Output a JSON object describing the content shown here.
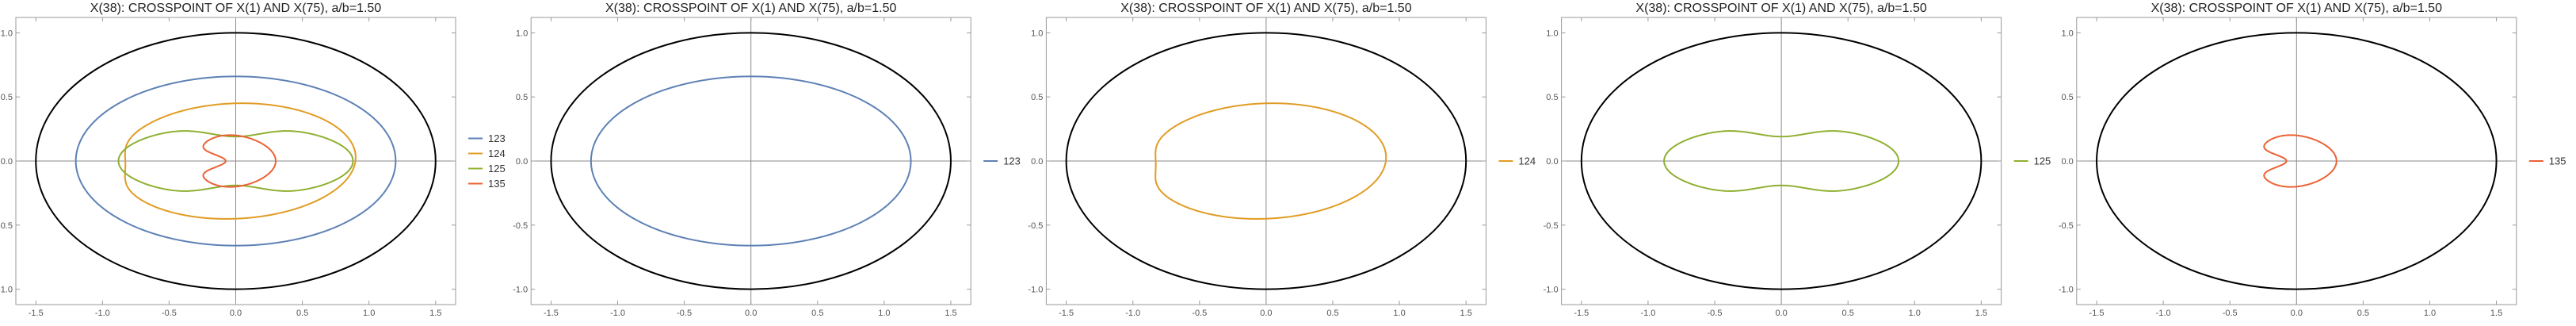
{
  "chart_data": [
    {
      "type": "line",
      "title": "X(38): CROSSPOINT OF X(1) AND X(75), a/b=1.50",
      "xlim": [
        -1.65,
        1.65
      ],
      "ylim": [
        -1.12,
        1.12
      ],
      "x_ticks": [
        "-1.5",
        "-1.0",
        "-0.5",
        "0.0",
        "0.5",
        "1.0",
        "1.5"
      ],
      "y_ticks": [
        "1.0",
        "0.5",
        "0.0",
        "-0.5",
        "-1.0"
      ],
      "grid": false,
      "legend_position": "right",
      "boundary": {
        "color": "#000000",
        "a": 1.5,
        "b": 1.0
      },
      "series": [
        {
          "name": "123",
          "color": "#5e81b5",
          "shape": "ellipse",
          "a": 1.2,
          "b": 0.66
        },
        {
          "name": "124",
          "color": "#e19c24",
          "shape": "kidney-skewed",
          "a": 0.9,
          "b": 0.45
        },
        {
          "name": "125",
          "color": "#8fb032",
          "shape": "peanut",
          "a": 0.88,
          "b": 0.28
        },
        {
          "name": "135",
          "color": "#eb6235",
          "shape": "kidney",
          "a": 0.3,
          "b": 0.2
        }
      ]
    },
    {
      "type": "line",
      "title": "X(38): CROSSPOINT OF X(1) AND X(75), a/b=1.50",
      "xlim": [
        -1.65,
        1.65
      ],
      "ylim": [
        -1.12,
        1.12
      ],
      "x_ticks": [
        "-1.5",
        "-1.0",
        "-0.5",
        "0.0",
        "0.5",
        "1.0",
        "1.5"
      ],
      "y_ticks": [
        "1.0",
        "0.5",
        "0.0",
        "-0.5",
        "-1.0"
      ],
      "grid": false,
      "legend_position": "right",
      "boundary": {
        "color": "#000000",
        "a": 1.5,
        "b": 1.0
      },
      "series": [
        {
          "name": "123",
          "color": "#5e81b5",
          "shape": "ellipse",
          "a": 1.2,
          "b": 0.66
        }
      ]
    },
    {
      "type": "line",
      "title": "X(38): CROSSPOINT OF X(1) AND X(75), a/b=1.50",
      "xlim": [
        -1.65,
        1.65
      ],
      "ylim": [
        -1.12,
        1.12
      ],
      "x_ticks": [
        "-1.5",
        "-1.0",
        "-0.5",
        "0.0",
        "0.5",
        "1.0",
        "1.5"
      ],
      "y_ticks": [
        "1.0",
        "0.5",
        "0.0",
        "-0.5",
        "-1.0"
      ],
      "grid": false,
      "legend_position": "right",
      "boundary": {
        "color": "#000000",
        "a": 1.5,
        "b": 1.0
      },
      "series": [
        {
          "name": "124",
          "color": "#e19c24",
          "shape": "kidney-skewed",
          "a": 0.9,
          "b": 0.45
        }
      ]
    },
    {
      "type": "line",
      "title": "X(38): CROSSPOINT OF X(1) AND X(75), a/b=1.50",
      "xlim": [
        -1.65,
        1.65
      ],
      "ylim": [
        -1.12,
        1.12
      ],
      "x_ticks": [
        "-1.5",
        "-1.0",
        "-0.5",
        "0.0",
        "0.5",
        "1.0",
        "1.5"
      ],
      "y_ticks": [
        "1.0",
        "0.5",
        "0.0",
        "-0.5",
        "-1.0"
      ],
      "grid": false,
      "legend_position": "right",
      "boundary": {
        "color": "#000000",
        "a": 1.5,
        "b": 1.0
      },
      "series": [
        {
          "name": "125",
          "color": "#8fb032",
          "shape": "peanut",
          "a": 0.88,
          "b": 0.28
        }
      ]
    },
    {
      "type": "line",
      "title": "X(38): CROSSPOINT OF X(1) AND X(75), a/b=1.50",
      "xlim": [
        -1.65,
        1.65
      ],
      "ylim": [
        -1.12,
        1.12
      ],
      "x_ticks": [
        "-1.5",
        "-1.0",
        "-0.5",
        "0.0",
        "0.5",
        "1.0",
        "1.5"
      ],
      "y_ticks": [
        "1.0",
        "0.5",
        "0.0",
        "-0.5",
        "-1.0"
      ],
      "grid": false,
      "legend_position": "right",
      "boundary": {
        "color": "#000000",
        "a": 1.5,
        "b": 1.0
      },
      "series": [
        {
          "name": "135",
          "color": "#eb6235",
          "shape": "kidney",
          "a": 0.3,
          "b": 0.2
        }
      ]
    }
  ]
}
